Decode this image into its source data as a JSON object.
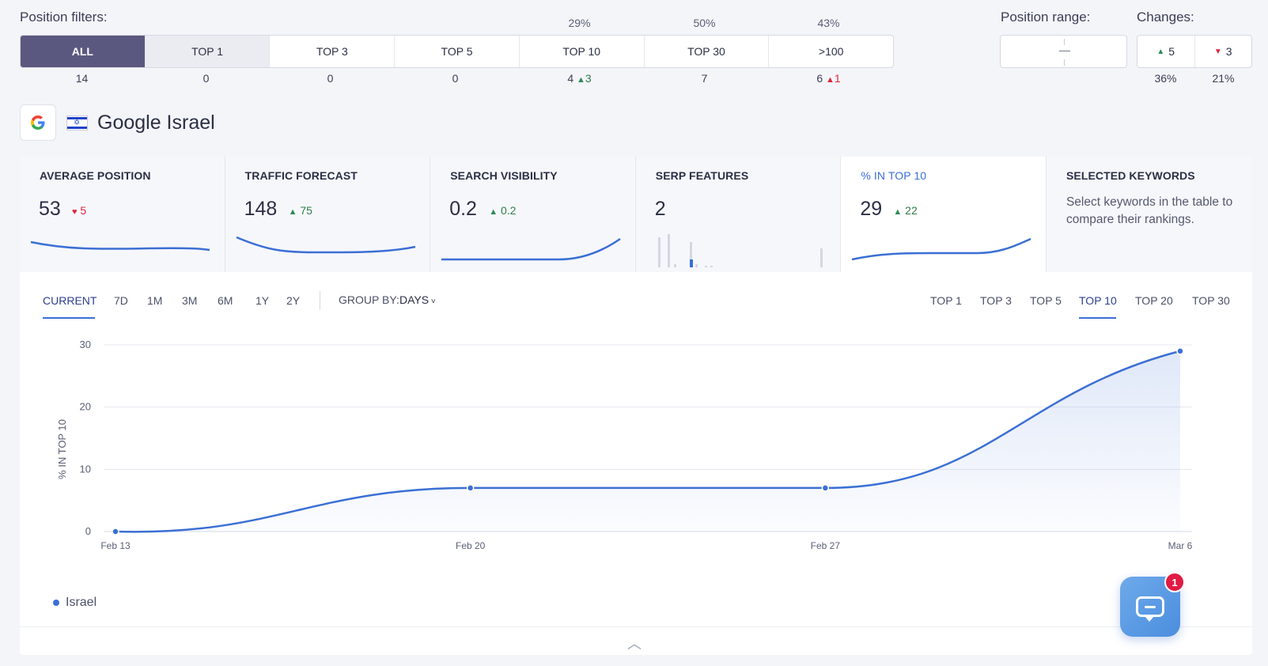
{
  "filters": {
    "label": "Position filters:",
    "items": [
      {
        "label": "ALL",
        "pct": "",
        "count": "14",
        "delta": "",
        "delta_dir": ""
      },
      {
        "label": "TOP 1",
        "pct": "",
        "count": "0",
        "delta": "",
        "delta_dir": ""
      },
      {
        "label": "TOP 3",
        "pct": "",
        "count": "0",
        "delta": "",
        "delta_dir": ""
      },
      {
        "label": "TOP 5",
        "pct": "",
        "count": "0",
        "delta": "",
        "delta_dir": ""
      },
      {
        "label": "TOP 10",
        "pct": "29%",
        "count": "4",
        "delta": "3",
        "delta_dir": "up"
      },
      {
        "label": "TOP 30",
        "pct": "50%",
        "count": "7",
        "delta": "",
        "delta_dir": ""
      },
      {
        "label": ">100",
        "pct": "43%",
        "count": "6",
        "delta": "1",
        "delta_dir": "down"
      }
    ]
  },
  "position_range": {
    "label": "Position range:",
    "value": "—"
  },
  "changes": {
    "label": "Changes:",
    "up": {
      "value": "5",
      "pct": "36%"
    },
    "down": {
      "value": "3",
      "pct": "21%"
    }
  },
  "engine": {
    "title": "Google Israel",
    "logo": "G"
  },
  "metrics": [
    {
      "title": "AVERAGE POSITION",
      "value": "53",
      "delta": "5",
      "delta_dir": "down"
    },
    {
      "title": "TRAFFIC FORECAST",
      "value": "148",
      "delta": "75",
      "delta_dir": "up"
    },
    {
      "title": "SEARCH VISIBILITY",
      "value": "0.2",
      "delta": "0.2",
      "delta_dir": "up"
    },
    {
      "title": "SERP FEATURES",
      "value": "2",
      "delta": "",
      "delta_dir": ""
    },
    {
      "title": "% IN TOP 10",
      "value": "29",
      "delta": "22",
      "delta_dir": "up"
    },
    {
      "title": "SELECTED KEYWORDS",
      "text": "Select keywords in the table to compare their rankings."
    }
  ],
  "periods": [
    "CURRENT",
    "7D",
    "1M",
    "3M",
    "6M",
    "1Y",
    "2Y"
  ],
  "group_by": {
    "label": "GROUP BY:",
    "value": "DAYS"
  },
  "top_tabs": [
    "TOP 1",
    "TOP 3",
    "TOP 5",
    "TOP 10",
    "TOP 20",
    "TOP 30"
  ],
  "chart_data": {
    "type": "area",
    "ylabel": "% IN TOP 10",
    "x": [
      "Feb 13",
      "Feb 20",
      "Feb 27",
      "Mar 6"
    ],
    "series": [
      {
        "name": "Israel",
        "values": [
          0,
          7,
          7,
          29
        ]
      }
    ],
    "ylim": [
      0,
      30
    ],
    "yticks": [
      0,
      10,
      20,
      30
    ],
    "grid": true,
    "legend": "bottom-left"
  },
  "legend": {
    "label": "Israel"
  },
  "chat": {
    "badge": "1"
  },
  "colors": {
    "accent": "#3b6fd4",
    "active_filter": "#5b5880",
    "up": "#2e8b57",
    "down": "#e0243b"
  },
  "icons": {
    "logo": "google-logo-icon",
    "flag": "israel-flag-icon",
    "collapse": "chevron-up-icon",
    "chat": "chat-bubble-icon"
  }
}
